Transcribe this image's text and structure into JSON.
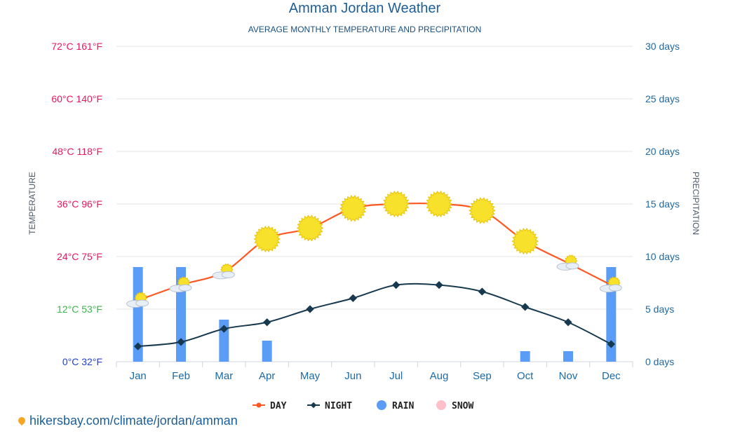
{
  "chart_data": {
    "type": "line+bar",
    "title": "Amman Jordan Weather",
    "subtitle": "AVERAGE MONTHLY TEMPERATURE AND PRECIPITATION",
    "categories": [
      "Jan",
      "Feb",
      "Mar",
      "Apr",
      "May",
      "Jun",
      "Jul",
      "Aug",
      "Sep",
      "Oct",
      "Nov",
      "Dec"
    ],
    "ylabel_left": "TEMPERATURE",
    "ylabel_right": "PRECIPITATION",
    "left_ticks": [
      {
        "label": "72°C 161°F",
        "value": 72,
        "color": "#e8175d"
      },
      {
        "label": "60°C 140°F",
        "value": 60,
        "color": "#e8175d"
      },
      {
        "label": "48°C 118°F",
        "value": 48,
        "color": "#e8175d"
      },
      {
        "label": "36°C 96°F",
        "value": 36,
        "color": "#e8175d"
      },
      {
        "label": "24°C 75°F",
        "value": 24,
        "color": "#e8175d"
      },
      {
        "label": "12°C 53°F",
        "value": 12,
        "color": "#3bb54a"
      },
      {
        "label": "0°C 32°F",
        "value": 0,
        "color": "#1f3fd8"
      }
    ],
    "right_ticks": [
      {
        "label": "30 days",
        "value": 30
      },
      {
        "label": "25 days",
        "value": 25
      },
      {
        "label": "20 days",
        "value": 20
      },
      {
        "label": "15 days",
        "value": 15
      },
      {
        "label": "10 days",
        "value": 10
      },
      {
        "label": "5 days",
        "value": 5
      },
      {
        "label": "0 days",
        "value": 0
      }
    ],
    "ylim_left": [
      0,
      72
    ],
    "ylim_right": [
      0,
      30
    ],
    "series": [
      {
        "name": "DAY",
        "type": "line",
        "axis": "left",
        "color": "#ff5722",
        "values": [
          14,
          17.5,
          20.5,
          28,
          30.5,
          35,
          36,
          36,
          34.5,
          27.5,
          22.5,
          17.5
        ]
      },
      {
        "name": "NIGHT",
        "type": "line",
        "axis": "left",
        "color": "#16394f",
        "values": [
          3.5,
          4.5,
          7.5,
          9,
          12,
          14.5,
          17.5,
          17.5,
          16,
          12.5,
          9,
          4
        ]
      },
      {
        "name": "RAIN",
        "type": "bar",
        "axis": "right",
        "color": "#5b9cf6",
        "values": [
          9,
          9,
          4,
          2,
          0,
          0,
          0,
          0,
          0,
          1,
          1,
          9
        ]
      },
      {
        "name": "SNOW",
        "type": "bar",
        "axis": "right",
        "color": "#ffc0cb",
        "values": [
          0,
          0,
          0,
          0,
          0,
          0,
          0,
          0,
          0,
          0,
          0,
          0
        ]
      }
    ],
    "weather_icons": [
      "partly-cloudy",
      "partly-cloudy",
      "partly-cloudy",
      "sun",
      "sun",
      "sun",
      "sun",
      "sun",
      "sun",
      "sun",
      "partly-cloudy",
      "partly-cloudy"
    ],
    "legend": [
      "DAY",
      "NIGHT",
      "RAIN",
      "SNOW"
    ]
  },
  "source": "hikersbay.com/climate/jordan/amman",
  "colors": {
    "grid": "#e6e6e6",
    "sun": "#f7e12a",
    "sun_stroke": "#e8c30d",
    "cloud": "#e8eef5"
  }
}
